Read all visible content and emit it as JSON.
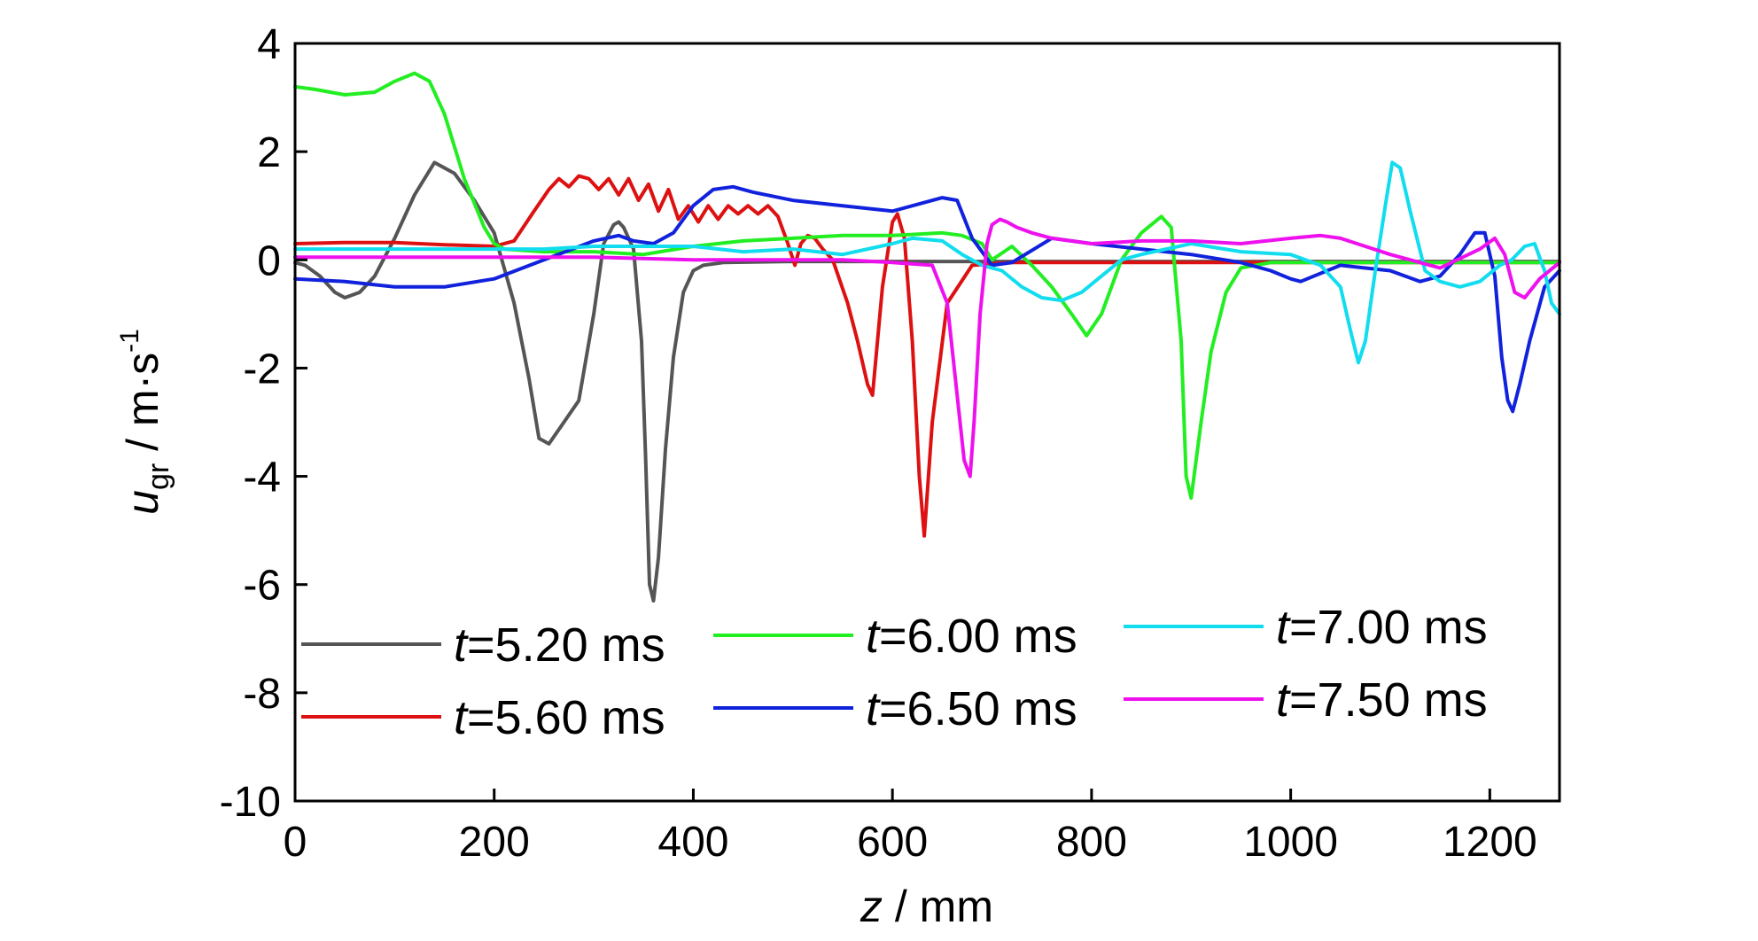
{
  "chart_data": {
    "type": "line",
    "title": "",
    "xlabel": {
      "italic": "z",
      "rest": " / mm"
    },
    "ylabel": {
      "italic": "u",
      "sub": "gr",
      "rest": " / m·s",
      "sup": "-1"
    },
    "xlim": [
      0,
      1270
    ],
    "ylim": [
      -10,
      4
    ],
    "xticks": [
      0,
      200,
      400,
      600,
      800,
      1000,
      1200
    ],
    "yticks": [
      4,
      2,
      0,
      -2,
      -4,
      -6,
      -8,
      -10
    ],
    "grid": false,
    "legend_position": "bottom-inside, 3 columns x 2 rows",
    "series": [
      {
        "name": {
          "italic": "t",
          "rest": "=5.20 ms"
        },
        "color": "#555555",
        "x": [
          0,
          10,
          25,
          40,
          50,
          65,
          80,
          100,
          120,
          140,
          160,
          180,
          200,
          220,
          235,
          245,
          255,
          270,
          285,
          300,
          310,
          320,
          325,
          330,
          340,
          348,
          352,
          356,
          360,
          365,
          372,
          380,
          390,
          400,
          410,
          430,
          500,
          600,
          700,
          800,
          900,
          1000,
          1100,
          1200,
          1270
        ],
        "y": [
          -0.05,
          -0.1,
          -0.3,
          -0.6,
          -0.7,
          -0.6,
          -0.3,
          0.4,
          1.2,
          1.8,
          1.6,
          1.1,
          0.5,
          -0.8,
          -2.2,
          -3.3,
          -3.4,
          -3.0,
          -2.6,
          -1.0,
          0.3,
          0.65,
          0.7,
          0.6,
          0.2,
          -1.5,
          -3.6,
          -6.0,
          -6.3,
          -5.5,
          -3.5,
          -1.8,
          -0.6,
          -0.2,
          -0.1,
          -0.05,
          -0.03,
          -0.03,
          -0.03,
          -0.03,
          -0.03,
          -0.03,
          -0.03,
          -0.03,
          -0.03
        ]
      },
      {
        "name": {
          "italic": "t",
          "rest": "=5.60 ms"
        },
        "color": "#dd1111",
        "x": [
          0,
          50,
          100,
          150,
          200,
          220,
          240,
          255,
          265,
          275,
          285,
          295,
          305,
          315,
          325,
          335,
          345,
          355,
          365,
          375,
          385,
          395,
          405,
          415,
          425,
          435,
          445,
          455,
          465,
          475,
          485,
          495,
          502,
          508,
          515,
          522,
          530,
          540,
          555,
          565,
          575,
          580,
          590,
          600,
          605,
          612,
          620,
          627,
          632,
          640,
          655,
          680,
          720,
          800,
          900,
          1000,
          1100,
          1200,
          1270
        ],
        "y": [
          0.3,
          0.32,
          0.32,
          0.28,
          0.25,
          0.35,
          0.9,
          1.3,
          1.5,
          1.35,
          1.55,
          1.5,
          1.3,
          1.5,
          1.2,
          1.5,
          1.1,
          1.4,
          0.9,
          1.3,
          0.75,
          1.0,
          0.7,
          1.0,
          0.75,
          1.0,
          0.85,
          1.0,
          0.85,
          1.0,
          0.8,
          0.3,
          -0.1,
          0.3,
          0.45,
          0.4,
          0.2,
          0.0,
          -0.8,
          -1.5,
          -2.3,
          -2.5,
          -0.5,
          0.7,
          0.85,
          0.4,
          -1.5,
          -4.0,
          -5.1,
          -3.0,
          -0.8,
          -0.1,
          -0.05,
          -0.05,
          -0.05,
          -0.05,
          -0.05,
          -0.05,
          -0.05
        ]
      },
      {
        "name": {
          "italic": "t",
          "rest": "=6.00 ms"
        },
        "color": "#22ee22",
        "x": [
          0,
          20,
          50,
          80,
          100,
          120,
          135,
          150,
          170,
          190,
          200,
          210,
          250,
          300,
          350,
          400,
          450,
          500,
          550,
          600,
          650,
          670,
          690,
          700,
          720,
          740,
          760,
          780,
          795,
          810,
          830,
          850,
          870,
          880,
          890,
          895,
          900,
          910,
          920,
          935,
          950,
          980,
          1050,
          1100,
          1150,
          1200,
          1270
        ],
        "y": [
          3.2,
          3.15,
          3.05,
          3.1,
          3.3,
          3.45,
          3.3,
          2.7,
          1.5,
          0.6,
          0.3,
          0.2,
          0.15,
          0.15,
          0.1,
          0.25,
          0.35,
          0.4,
          0.45,
          0.45,
          0.5,
          0.45,
          0.3,
          0.0,
          0.25,
          -0.1,
          -0.5,
          -1.0,
          -1.4,
          -1.0,
          0.0,
          0.5,
          0.8,
          0.6,
          -1.5,
          -4.0,
          -4.4,
          -3.0,
          -1.7,
          -0.6,
          -0.15,
          -0.05,
          -0.05,
          -0.05,
          -0.05,
          -0.05,
          -0.05
        ]
      },
      {
        "name": {
          "italic": "t",
          "rest": "=6.50 ms"
        },
        "color": "#1122dd",
        "x": [
          0,
          50,
          100,
          150,
          200,
          250,
          300,
          325,
          340,
          360,
          380,
          400,
          420,
          440,
          460,
          500,
          550,
          600,
          650,
          665,
          680,
          700,
          720,
          760,
          800,
          850,
          900,
          950,
          980,
          1000,
          1010,
          1050,
          1100,
          1130,
          1150,
          1170,
          1185,
          1195,
          1205,
          1212,
          1218,
          1223,
          1230,
          1240,
          1255,
          1270
        ],
        "y": [
          -0.35,
          -0.4,
          -0.5,
          -0.5,
          -0.35,
          0.0,
          0.35,
          0.45,
          0.35,
          0.3,
          0.5,
          1.0,
          1.3,
          1.35,
          1.25,
          1.1,
          1.0,
          0.9,
          1.15,
          1.1,
          0.4,
          -0.1,
          -0.05,
          0.4,
          0.3,
          0.2,
          0.1,
          -0.05,
          -0.2,
          -0.35,
          -0.4,
          -0.1,
          -0.2,
          -0.4,
          -0.3,
          0.1,
          0.5,
          0.5,
          -0.3,
          -1.8,
          -2.6,
          -2.8,
          -2.3,
          -1.5,
          -0.5,
          -0.2
        ]
      },
      {
        "name": {
          "italic": "t",
          "rest": "=7.00 ms"
        },
        "color": "#11ddee",
        "x": [
          0,
          50,
          100,
          150,
          200,
          250,
          300,
          350,
          400,
          450,
          500,
          550,
          600,
          620,
          650,
          670,
          690,
          710,
          730,
          750,
          770,
          790,
          810,
          830,
          850,
          900,
          950,
          1000,
          1030,
          1050,
          1060,
          1068,
          1075,
          1085,
          1095,
          1102,
          1110,
          1120,
          1135,
          1150,
          1170,
          1190,
          1210,
          1222,
          1235,
          1245,
          1255,
          1262,
          1270
        ],
        "y": [
          0.2,
          0.2,
          0.2,
          0.2,
          0.2,
          0.2,
          0.25,
          0.25,
          0.25,
          0.15,
          0.2,
          0.1,
          0.3,
          0.4,
          0.35,
          0.1,
          -0.1,
          -0.2,
          -0.5,
          -0.7,
          -0.75,
          -0.6,
          -0.3,
          0.0,
          0.1,
          0.3,
          0.15,
          0.1,
          -0.1,
          -0.5,
          -1.3,
          -1.9,
          -1.5,
          -0.2,
          1.0,
          1.8,
          1.7,
          0.9,
          -0.2,
          -0.4,
          -0.5,
          -0.4,
          -0.1,
          0.0,
          0.25,
          0.3,
          -0.2,
          -0.8,
          -1.0
        ]
      },
      {
        "name": {
          "italic": "t",
          "rest": "=7.50 ms"
        },
        "color": "#ee11ee",
        "x": [
          0,
          100,
          200,
          300,
          400,
          500,
          550,
          600,
          640,
          655,
          665,
          672,
          678,
          682,
          688,
          695,
          700,
          708,
          715,
          725,
          740,
          760,
          800,
          850,
          900,
          950,
          1000,
          1030,
          1050,
          1100,
          1150,
          1190,
          1205,
          1215,
          1225,
          1235,
          1250,
          1270
        ],
        "y": [
          0.05,
          0.05,
          0.05,
          0.05,
          0.0,
          0.0,
          0.0,
          -0.05,
          -0.1,
          -0.8,
          -2.5,
          -3.7,
          -4.0,
          -3.0,
          -1.0,
          0.3,
          0.65,
          0.75,
          0.7,
          0.6,
          0.5,
          0.4,
          0.3,
          0.35,
          0.35,
          0.3,
          0.4,
          0.45,
          0.4,
          0.1,
          -0.15,
          0.2,
          0.4,
          0.1,
          -0.6,
          -0.7,
          -0.35,
          -0.05
        ]
      }
    ]
  }
}
